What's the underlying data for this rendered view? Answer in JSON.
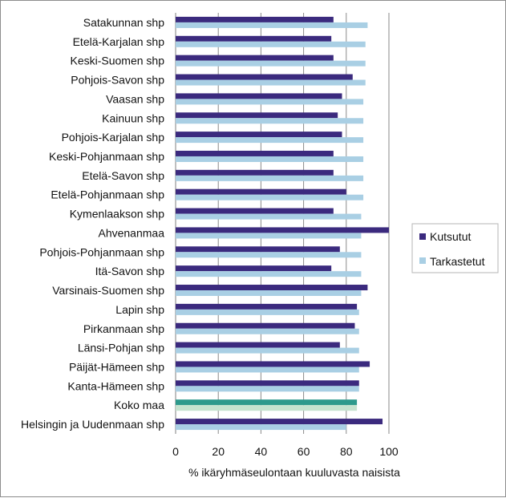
{
  "chart_data": {
    "type": "bar",
    "orientation": "horizontal",
    "categories": [
      "Satakunnan shp",
      "Etelä-Karjalan shp",
      "Keski-Suomen shp",
      "Pohjois-Savon shp",
      "Vaasan shp",
      "Kainuun shp",
      "Pohjois-Karjalan shp",
      "Keski-Pohjanmaan shp",
      "Etelä-Savon shp",
      "Etelä-Pohjanmaan shp",
      "Kymenlaakson shp",
      "Ahvenanmaa",
      "Pohjois-Pohjanmaan shp",
      "Itä-Savon shp",
      "Varsinais-Suomen shp",
      "Lapin shp",
      "Pirkanmaan shp",
      "Länsi-Pohjan shp",
      "Päijät-Hämeen shp",
      "Kanta-Hämeen shp",
      "Koko maa",
      "Helsingin ja Uudenmaan shp"
    ],
    "series": [
      {
        "name": "Kutsutut",
        "color": "#3b2a7e",
        "highlight_color": "#2e9a8c",
        "values": [
          74,
          73,
          74,
          83,
          78,
          76,
          78,
          74,
          74,
          80,
          74,
          100,
          77,
          73,
          90,
          85,
          84,
          77,
          91,
          86,
          85,
          97
        ]
      },
      {
        "name": "Tarkastetut",
        "color": "#a9cfe4",
        "highlight_color": "#c6e3cf",
        "values": [
          90,
          89,
          89,
          89,
          88,
          88,
          88,
          88,
          88,
          88,
          87,
          87,
          87,
          87,
          87,
          86,
          86,
          86,
          86,
          86,
          85,
          80
        ]
      }
    ],
    "highlight_category": "Koko maa",
    "xlabel": "% ikäryhmäseulontaan kuuluvasta naisista",
    "ylabel": "",
    "xlim": [
      0,
      100
    ],
    "xticks": [
      0,
      20,
      40,
      60,
      80,
      100
    ],
    "grid": true,
    "legend_position": "right"
  }
}
